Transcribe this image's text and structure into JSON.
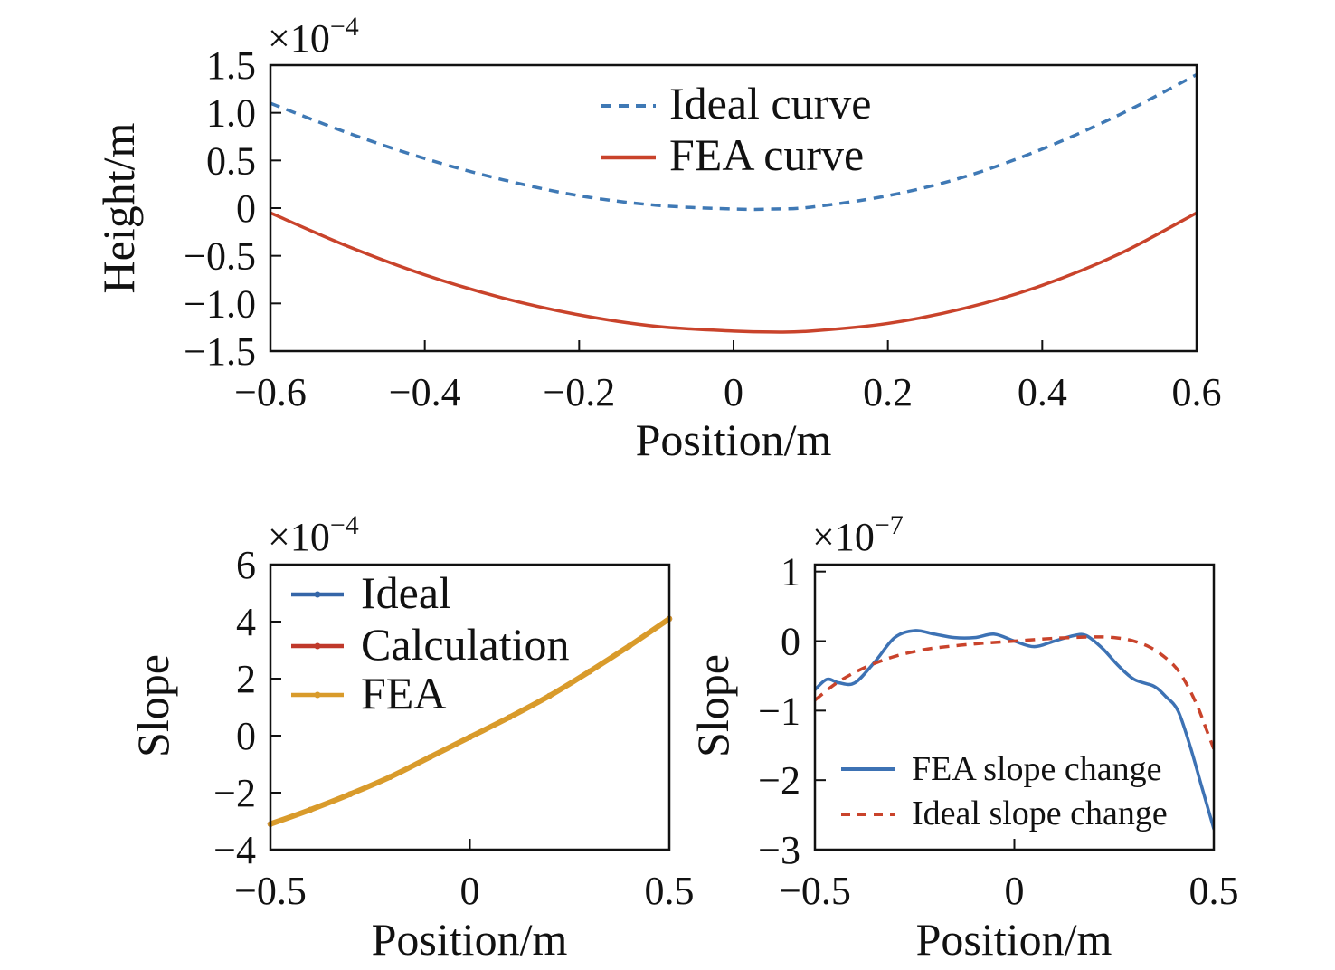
{
  "chart_data": [
    {
      "id": "top",
      "type": "line",
      "xlabel": "Position/m",
      "ylabel": "Height/m",
      "xlim": [
        -0.6,
        0.6
      ],
      "ylim": [
        -1.5,
        1.5
      ],
      "xticks": [
        "−0.6",
        "−0.4",
        "−0.2",
        "0",
        "0.2",
        "0.4",
        "0.6"
      ],
      "yticks": [
        "1.5",
        "1.0",
        "0.5",
        "0",
        "−0.5",
        "−1.0",
        "−1.5"
      ],
      "y_multiplier": {
        "base": "×10",
        "exponent": "−4"
      },
      "legend": "top-center",
      "grid": false,
      "series": [
        {
          "name": "Ideal curve",
          "style": "dashed",
          "color": "#3f79b5",
          "x": [
            -0.6,
            -0.5,
            -0.4,
            -0.3,
            -0.2,
            -0.1,
            0.0,
            0.05,
            0.1,
            0.2,
            0.3,
            0.4,
            0.5,
            0.6
          ],
          "y": [
            1.1,
            0.79,
            0.52,
            0.3,
            0.13,
            0.03,
            -0.01,
            -0.01,
            0.01,
            0.13,
            0.33,
            0.62,
            0.98,
            1.4
          ]
        },
        {
          "name": "FEA curve",
          "style": "solid",
          "color": "#c9432b",
          "x": [
            -0.6,
            -0.5,
            -0.4,
            -0.3,
            -0.2,
            -0.1,
            0.0,
            0.05,
            0.1,
            0.2,
            0.3,
            0.4,
            0.5,
            0.6
          ],
          "y": [
            -0.05,
            -0.4,
            -0.7,
            -0.94,
            -1.12,
            -1.24,
            -1.29,
            -1.3,
            -1.29,
            -1.21,
            -1.05,
            -0.81,
            -0.48,
            -0.05
          ]
        }
      ]
    },
    {
      "id": "bottom-left",
      "type": "line",
      "xlabel": "Position/m",
      "ylabel": "Slope",
      "xlim": [
        -0.5,
        0.5
      ],
      "ylim": [
        -4,
        6
      ],
      "xticks": [
        "−0.5",
        "0",
        "0.5"
      ],
      "yticks": [
        "6",
        "4",
        "2",
        "0",
        "−2",
        "−4"
      ],
      "y_multiplier": {
        "base": "×10",
        "exponent": "−4"
      },
      "legend": "top-left",
      "grid": false,
      "series": [
        {
          "name": "Ideal",
          "style": "solid-marker",
          "color": "#3566a8",
          "x": [
            -0.5,
            -0.4,
            -0.3,
            -0.2,
            -0.1,
            0.0,
            0.1,
            0.2,
            0.3,
            0.4,
            0.5
          ],
          "y": [
            -3.1,
            -2.6,
            -2.05,
            -1.45,
            -0.75,
            -0.05,
            0.65,
            1.4,
            2.25,
            3.15,
            4.1
          ]
        },
        {
          "name": "Calculation",
          "style": "solid-marker",
          "color": "#c0392b",
          "x": [
            -0.5,
            -0.4,
            -0.3,
            -0.2,
            -0.1,
            0.0,
            0.1,
            0.2,
            0.3,
            0.4,
            0.5
          ],
          "y": [
            -3.1,
            -2.6,
            -2.05,
            -1.45,
            -0.75,
            -0.05,
            0.65,
            1.4,
            2.25,
            3.15,
            4.1
          ]
        },
        {
          "name": "FEA",
          "style": "solid-marker",
          "color": "#d99b2b",
          "x": [
            -0.5,
            -0.4,
            -0.3,
            -0.2,
            -0.1,
            0.0,
            0.1,
            0.2,
            0.3,
            0.4,
            0.5
          ],
          "y": [
            -3.1,
            -2.6,
            -2.05,
            -1.45,
            -0.75,
            -0.05,
            0.65,
            1.4,
            2.25,
            3.15,
            4.1
          ]
        }
      ]
    },
    {
      "id": "bottom-right",
      "type": "line",
      "xlabel": "Position/m",
      "ylabel": "Slope",
      "xlim": [
        -0.5,
        0.5
      ],
      "ylim": [
        -3,
        1.1
      ],
      "xticks": [
        "−0.5",
        "0",
        "0.5"
      ],
      "yticks": [
        "1",
        "0",
        "−1",
        "−2",
        "−3"
      ],
      "ytick_values": [
        1,
        0,
        -1,
        -2,
        -3
      ],
      "y_multiplier": {
        "base": "×10",
        "exponent": "−7"
      },
      "legend": "bottom-right",
      "grid": false,
      "series": [
        {
          "name": "FEA slope change",
          "style": "solid",
          "color": "#3d72b4",
          "x": [
            -0.5,
            -0.47,
            -0.44,
            -0.4,
            -0.35,
            -0.3,
            -0.25,
            -0.2,
            -0.15,
            -0.1,
            -0.05,
            0.0,
            0.05,
            0.1,
            0.15,
            0.18,
            0.22,
            0.26,
            0.3,
            0.35,
            0.38,
            0.41,
            0.44,
            0.47,
            0.5
          ],
          "y": [
            -0.7,
            -0.55,
            -0.6,
            -0.6,
            -0.3,
            0.05,
            0.15,
            0.1,
            0.05,
            0.05,
            0.1,
            0.0,
            -0.08,
            0.0,
            0.08,
            0.08,
            -0.1,
            -0.35,
            -0.55,
            -0.65,
            -0.8,
            -1.0,
            -1.5,
            -2.1,
            -2.7
          ]
        },
        {
          "name": "Ideal slope change",
          "style": "dashed",
          "color": "#c9432b",
          "x": [
            -0.5,
            -0.45,
            -0.4,
            -0.35,
            -0.3,
            -0.25,
            -0.2,
            -0.1,
            0.0,
            0.1,
            0.2,
            0.25,
            0.3,
            0.35,
            0.4,
            0.43,
            0.46,
            0.48,
            0.5
          ],
          "y": [
            -0.85,
            -0.62,
            -0.45,
            -0.32,
            -0.22,
            -0.15,
            -0.1,
            -0.04,
            0.0,
            0.04,
            0.06,
            0.05,
            0.0,
            -0.12,
            -0.35,
            -0.6,
            -0.95,
            -1.25,
            -1.55
          ]
        }
      ]
    }
  ]
}
